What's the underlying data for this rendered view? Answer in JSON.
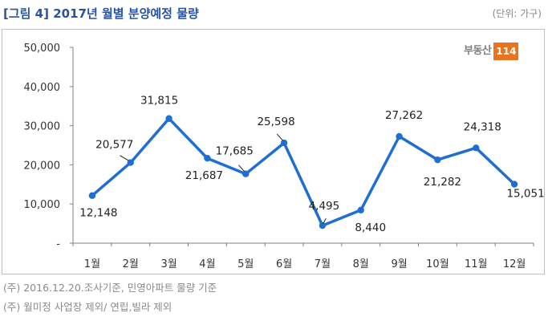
{
  "header": {
    "title": "[그림 4] 2017년 월별 분양예정 물량",
    "unit": "(단위: 가구)"
  },
  "logo": {
    "text": "부동산",
    "number": "114"
  },
  "notes": [
    "(주) 2016.12.20.조사기준, 민영아파트 물량 기준",
    "(주) 월미정 사업장 제외/ 연립,빌라 제외"
  ],
  "colors": {
    "line": "#1f6fd2",
    "axis": "#7f7f7f",
    "title": "#2553a8",
    "logo_badge": "#e8741e"
  },
  "chart_data": {
    "type": "line",
    "categories": [
      "1월",
      "2월",
      "3월",
      "4월",
      "5월",
      "6월",
      "7월",
      "8월",
      "9월",
      "10월",
      "11월",
      "12월"
    ],
    "series": [
      {
        "values": [
          12148,
          20577,
          31815,
          21687,
          17685,
          25598,
          4495,
          8440,
          27262,
          21282,
          24318,
          15051
        ]
      }
    ],
    "data_labels": [
      "12,148",
      "20,577",
      "31,815",
      "21,687",
      "17,685",
      "25,598",
      "4,495",
      "8,440",
      "27,262",
      "21,282",
      "24,318",
      "15,051"
    ],
    "ylim": [
      0,
      50000
    ],
    "yticks": [
      0,
      10000,
      20000,
      30000,
      40000,
      50000
    ],
    "ytick_labels": [
      "-",
      "10,000",
      "20,000",
      "30,000",
      "40,000",
      "50,000"
    ],
    "grid": false,
    "legend": "none"
  }
}
